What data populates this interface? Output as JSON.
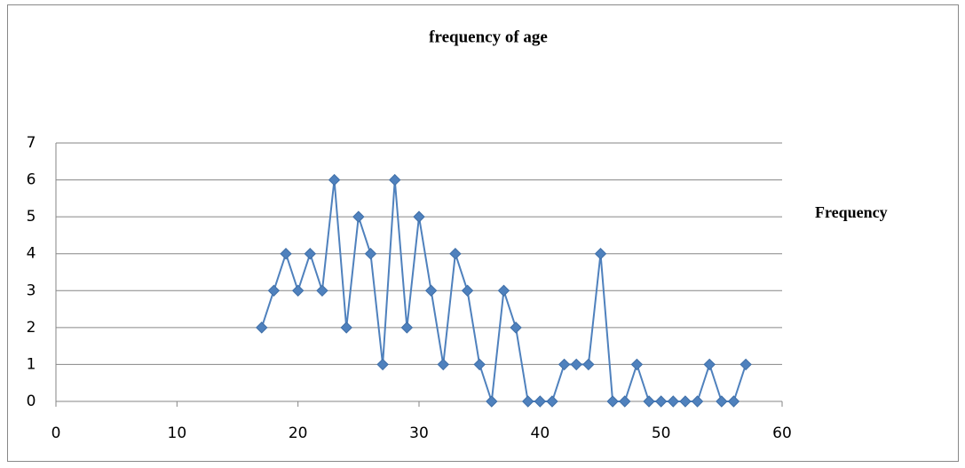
{
  "chart_data": {
    "type": "line",
    "title": "frequency of age",
    "x": [
      17,
      18,
      19,
      20,
      21,
      22,
      23,
      24,
      25,
      26,
      27,
      28,
      29,
      30,
      31,
      32,
      33,
      34,
      35,
      36,
      37,
      38,
      39,
      40,
      41,
      42,
      43,
      44,
      45,
      46,
      47,
      48,
      49,
      50,
      51,
      52,
      53,
      54,
      55,
      56,
      57
    ],
    "series": [
      {
        "name": "Frequency",
        "color": "#4f81bd",
        "values": [
          2,
          3,
          4,
          3,
          4,
          3,
          6,
          2,
          5,
          4,
          1,
          6,
          2,
          5,
          3,
          1,
          4,
          3,
          1,
          0,
          3,
          2,
          0,
          0,
          0,
          1,
          1,
          1,
          4,
          0,
          0,
          1,
          0,
          0,
          0,
          0,
          0,
          1,
          0,
          0,
          1
        ]
      }
    ],
    "xlim": [
      0,
      60
    ],
    "xticks": [
      0,
      10,
      20,
      30,
      40,
      50,
      60
    ],
    "ylim": [
      0,
      7
    ],
    "yticks": [
      0,
      1,
      2,
      3,
      4,
      5,
      6,
      7
    ],
    "grid": true,
    "legend": "right"
  }
}
